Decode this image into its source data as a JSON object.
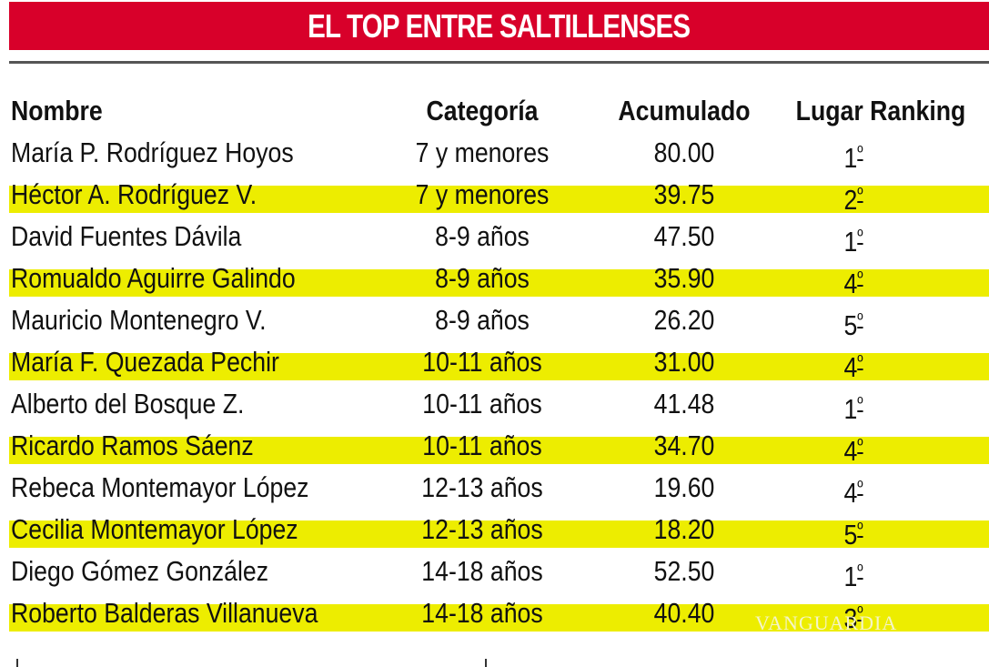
{
  "title": "EL TOP ENTRE SALTILLENSES",
  "colors": {
    "banner": "#d8002a",
    "highlight": "#eded00",
    "rule": "#555555"
  },
  "columns": [
    "Nombre",
    "Categoría",
    "Acumulado",
    "Lugar Ranking"
  ],
  "rows": [
    {
      "nombre": "María P. Rodríguez Hoyos",
      "categoria": "7 y menores",
      "acumulado": "80.00",
      "lugar": "1",
      "ord": "º"
    },
    {
      "nombre": "Héctor A. Rodríguez V.",
      "categoria": "7 y menores",
      "acumulado": "39.75",
      "lugar": "2",
      "ord": "º"
    },
    {
      "nombre": "David Fuentes Dávila",
      "categoria": "8-9 años",
      "acumulado": "47.50",
      "lugar": "1",
      "ord": "º"
    },
    {
      "nombre": "Romualdo Aguirre Galindo",
      "categoria": "8-9 años",
      "acumulado": "35.90",
      "lugar": "4",
      "ord": "º"
    },
    {
      "nombre": "Mauricio Montenegro V.",
      "categoria": "8-9 años",
      "acumulado": "26.20",
      "lugar": "5",
      "ord": "º"
    },
    {
      "nombre": "María F. Quezada Pechir",
      "categoria": "10-11 años",
      "acumulado": "31.00",
      "lugar": "4",
      "ord": "º"
    },
    {
      "nombre": "Alberto del Bosque Z.",
      "categoria": "10-11 años",
      "acumulado": "41.48",
      "lugar": "1",
      "ord": "º"
    },
    {
      "nombre": "Ricardo Ramos Sáenz",
      "categoria": "10-11 años",
      "acumulado": "34.70",
      "lugar": "4",
      "ord": "º"
    },
    {
      "nombre": "Rebeca Montemayor López",
      "categoria": "12-13 años",
      "acumulado": "19.60",
      "lugar": "4",
      "ord": "º"
    },
    {
      "nombre": "Cecilia Montemayor López",
      "categoria": "12-13 años",
      "acumulado": "18.20",
      "lugar": "5",
      "ord": "º"
    },
    {
      "nombre": "Diego Gómez González",
      "categoria": "14-18 años",
      "acumulado": "52.50",
      "lugar": "1",
      "ord": "º"
    },
    {
      "nombre": "Roberto Balderas Villanueva",
      "categoria": "14-18 años",
      "acumulado": "40.40",
      "lugar": "3",
      "ord": "º"
    }
  ],
  "watermark": "VANGUARDIA"
}
